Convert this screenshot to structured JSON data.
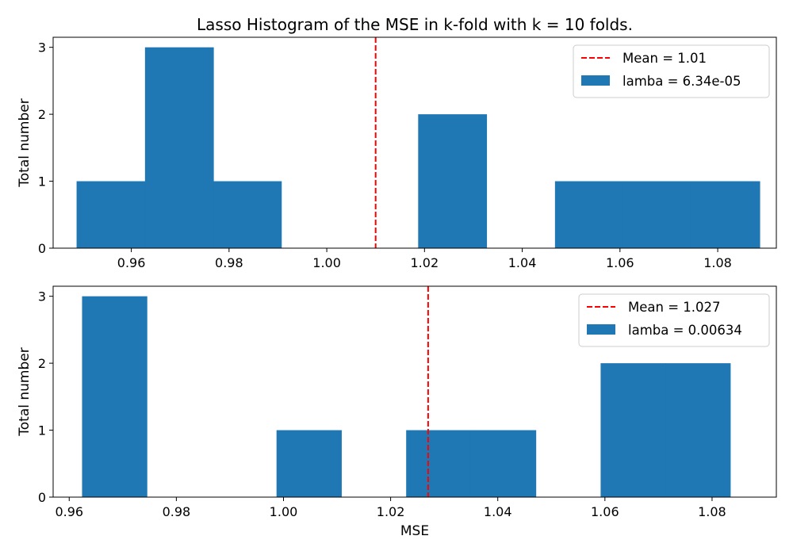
{
  "figure_title": "Lasso Histogram of the MSE in k-fold with k = 10 folds.",
  "colors": {
    "bar": "#1f77b4",
    "mean_line": "#ff0000"
  },
  "chart_data": [
    {
      "type": "bar",
      "title": "Lasso Histogram of the MSE in k-fold with k = 10 folds.",
      "xlabel": "",
      "ylabel": "Total number",
      "xlim": [
        0.944,
        1.092
      ],
      "ylim": [
        0,
        3.15
      ],
      "xticks": [
        0.96,
        0.98,
        1.0,
        1.02,
        1.04,
        1.06,
        1.08
      ],
      "xtick_labels": [
        "0.96",
        "0.98",
        "1.00",
        "1.02",
        "1.04",
        "1.06",
        "1.08"
      ],
      "yticks": [
        0,
        1,
        2,
        3
      ],
      "ytick_labels": [
        "0",
        "1",
        "2",
        "3"
      ],
      "bins": [
        {
          "x0": 0.9488,
          "x1": 0.9628,
          "count": 1
        },
        {
          "x0": 0.9628,
          "x1": 0.9768,
          "count": 3
        },
        {
          "x0": 0.9768,
          "x1": 0.9907,
          "count": 1
        },
        {
          "x0": 0.9907,
          "x1": 1.0047,
          "count": 0
        },
        {
          "x0": 1.0047,
          "x1": 1.0187,
          "count": 0
        },
        {
          "x0": 1.0187,
          "x1": 1.0327,
          "count": 2
        },
        {
          "x0": 1.0327,
          "x1": 1.0467,
          "count": 0
        },
        {
          "x0": 1.0467,
          "x1": 1.0606,
          "count": 1
        },
        {
          "x0": 1.0606,
          "x1": 1.0746,
          "count": 1
        },
        {
          "x0": 1.0746,
          "x1": 1.0886,
          "count": 1
        }
      ],
      "mean": 1.01,
      "mean_label": "Mean = 1.01",
      "bar_label": "lamba = 6.34e-05",
      "legend": "top-right"
    },
    {
      "type": "bar",
      "title": "",
      "xlabel": "MSE",
      "ylabel": "Total number",
      "xlim": [
        0.957,
        1.092
      ],
      "ylim": [
        0,
        3.15
      ],
      "xticks": [
        0.96,
        0.98,
        1.0,
        1.02,
        1.04,
        1.06,
        1.08
      ],
      "xtick_labels": [
        "0.96",
        "0.98",
        "1.00",
        "1.02",
        "1.04",
        "1.06",
        "1.08"
      ],
      "yticks": [
        0,
        1,
        2,
        3
      ],
      "ytick_labels": [
        "0",
        "1",
        "2",
        "3"
      ],
      "bins": [
        {
          "x0": 0.9624,
          "x1": 0.9745,
          "count": 3
        },
        {
          "x0": 0.9745,
          "x1": 0.9866,
          "count": 0
        },
        {
          "x0": 0.9866,
          "x1": 0.9987,
          "count": 0
        },
        {
          "x0": 0.9987,
          "x1": 1.0108,
          "count": 1
        },
        {
          "x0": 1.0108,
          "x1": 1.0229,
          "count": 0
        },
        {
          "x0": 1.0229,
          "x1": 1.035,
          "count": 1
        },
        {
          "x0": 1.035,
          "x1": 1.0471,
          "count": 1
        },
        {
          "x0": 1.0471,
          "x1": 1.0592,
          "count": 0
        },
        {
          "x0": 1.0592,
          "x1": 1.0713,
          "count": 2
        },
        {
          "x0": 1.0713,
          "x1": 1.0834,
          "count": 2
        }
      ],
      "mean": 1.027,
      "mean_label": "Mean = 1.027",
      "bar_label": "lamba = 0.00634",
      "legend": "top-right"
    }
  ]
}
